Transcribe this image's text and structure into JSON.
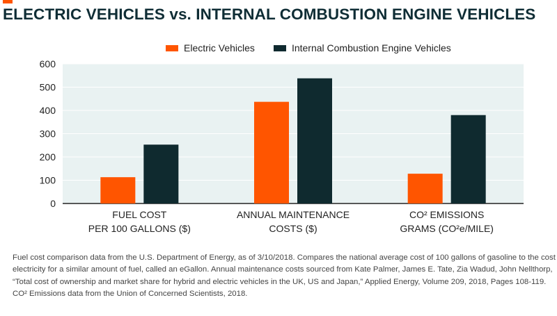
{
  "colors": {
    "electric": "#ff5500",
    "ice": "#0f2a2f",
    "plot_background": "#e9f2f2",
    "grid": "#ffffff",
    "axis": "#222222",
    "title": "#0f2d35",
    "accent": "#ff5500"
  },
  "title": "ELECTRIC VEHICLES vs. INTERNAL COMBUSTION ENGINE VEHICLES",
  "chart_data": {
    "type": "bar",
    "title": "",
    "xlabel": "",
    "ylabel": "",
    "ylim": [
      0,
      600
    ],
    "yticks": [
      0,
      100,
      200,
      300,
      400,
      500,
      600
    ],
    "grid": true,
    "legend_position": "top-center",
    "categories": [
      [
        "FUEL COST",
        "PER 100 GALLONS ($)"
      ],
      [
        "ANNUAL MAINTENANCE",
        "COSTS ($)"
      ],
      [
        "CO² EMISSIONS",
        "GRAMS (CO²e/MILE)"
      ]
    ],
    "series": [
      {
        "name": "Electric Vehicles",
        "values": [
          113,
          437,
          128
        ]
      },
      {
        "name": "Internal Combustion Engine Vehicles",
        "values": [
          253,
          538,
          380
        ]
      }
    ]
  },
  "footnote": [
    "Fuel cost comparison data from the U.S. Department of Energy, as of 3/10/2018. Compares the national average cost of 100 gallons of gasoline to the cost of",
    "electricity for a similar amount of fuel, called an eGallon. Annual maintenance costs sourced from Kate Palmer, James E. Tate, Zia Wadud, John Nellthorp,",
    "“Total cost of ownership and market share for hybrid and electric vehicles in the UK, US and Japan,” Applied Energy, Volume 209, 2018, Pages 108-119.",
    "CO² Emissions data from the Union of Concerned Scientists, 2018."
  ]
}
